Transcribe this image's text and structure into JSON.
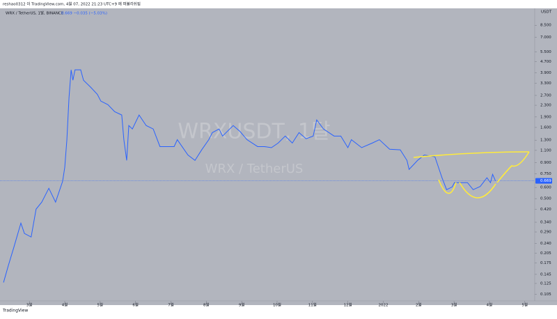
{
  "header": "reshao0312 이 TradingView.com, 4월 07, 2022 21:23 UTC+9 에 퍼블리쉬됨",
  "footer": "TradingView",
  "chart_data": {
    "type": "line",
    "legend_title": "WRX / TetherUS, 1달, BINANCE",
    "legend_quote": "0.669 −0.035 (−5.03%)",
    "watermark_symbol": "WRXUSDT, 1달",
    "watermark_name": "WRX / TetherUS",
    "y_axis_unit": "USDT",
    "log_scale": true,
    "grid": false,
    "y_axis_side": "right",
    "last_price": 0.669,
    "xlim": [
      2.17,
      17.28
    ],
    "ylim": [
      0.094,
      11.2
    ],
    "xticks": [
      {
        "value": 3,
        "label": "3월"
      },
      {
        "value": 4,
        "label": "4월"
      },
      {
        "value": 5,
        "label": "5월"
      },
      {
        "value": 6,
        "label": "6월"
      },
      {
        "value": 7,
        "label": "7월"
      },
      {
        "value": 8,
        "label": "8월"
      },
      {
        "value": 9,
        "label": "9월"
      },
      {
        "value": 10,
        "label": "10월"
      },
      {
        "value": 11,
        "label": "11월"
      },
      {
        "value": 12,
        "label": "12월"
      },
      {
        "value": 13,
        "label": "2022"
      },
      {
        "value": 14,
        "label": "2월"
      },
      {
        "value": 15,
        "label": "3월"
      },
      {
        "value": 16,
        "label": "4월"
      },
      {
        "value": 17,
        "label": "5월"
      }
    ],
    "yticks": [
      {
        "value": 0.105,
        "label": "0.105"
      },
      {
        "value": 0.125,
        "label": "0.125"
      },
      {
        "value": 0.145,
        "label": "0.145"
      },
      {
        "value": 0.175,
        "label": "0.175"
      },
      {
        "value": 0.205,
        "label": "0.205"
      },
      {
        "value": 0.24,
        "label": "0.240"
      },
      {
        "value": 0.29,
        "label": "0.290"
      },
      {
        "value": 0.34,
        "label": "0.340"
      },
      {
        "value": 0.42,
        "label": "0.420"
      },
      {
        "value": 0.5,
        "label": "0.500"
      },
      {
        "value": 0.6,
        "label": "0.600"
      },
      {
        "value": 0.75,
        "label": "0.750"
      },
      {
        "value": 0.9,
        "label": "0.900"
      },
      {
        "value": 1.1,
        "label": "1.100"
      },
      {
        "value": 1.3,
        "label": "1.300"
      },
      {
        "value": 1.6,
        "label": "1.600"
      },
      {
        "value": 1.9,
        "label": "1.900"
      },
      {
        "value": 2.3,
        "label": "2.300"
      },
      {
        "value": 2.7,
        "label": "2.700"
      },
      {
        "value": 3.3,
        "label": "3.300"
      },
      {
        "value": 3.9,
        "label": "3.900"
      },
      {
        "value": 4.7,
        "label": "4.700"
      },
      {
        "value": 5.5,
        "label": "5.500"
      },
      {
        "value": 7,
        "label": "7.000"
      },
      {
        "value": 8.5,
        "label": "8.500"
      }
    ],
    "series": [
      {
        "name": "WRX / TetherUS",
        "color": "#2962ff",
        "x": [
          2.27,
          2.41,
          2.56,
          2.76,
          2.86,
          3.05,
          3.19,
          3.35,
          3.55,
          3.74,
          3.94,
          4.0,
          4.06,
          4.12,
          4.18,
          4.23,
          4.29,
          4.45,
          4.53,
          4.73,
          4.92,
          5.02,
          5.22,
          5.41,
          5.61,
          5.67,
          5.75,
          5.81,
          5.91,
          6.1,
          6.3,
          6.5,
          6.69,
          6.89,
          7.09,
          7.18,
          7.48,
          7.68,
          7.87,
          8.07,
          8.17,
          8.36,
          8.46,
          8.76,
          8.95,
          9.15,
          9.45,
          9.64,
          9.84,
          10.03,
          10.23,
          10.43,
          10.62,
          10.82,
          11.02,
          11.12,
          11.31,
          11.61,
          11.8,
          12.0,
          12.1,
          12.39,
          12.69,
          12.89,
          13.18,
          13.48,
          13.67,
          13.73,
          13.97,
          14.16,
          14.46,
          14.66,
          14.79,
          14.95,
          15.01,
          15.19,
          15.38,
          15.54,
          15.74,
          15.93,
          16.03,
          16.09,
          16.17
        ],
        "values": [
          0.127,
          0.169,
          0.225,
          0.335,
          0.283,
          0.267,
          0.421,
          0.472,
          0.592,
          0.472,
          0.664,
          0.833,
          1.31,
          2.6,
          4.1,
          3.46,
          4.1,
          4.1,
          3.46,
          3.09,
          2.75,
          2.46,
          2.32,
          2.07,
          1.96,
          1.31,
          0.934,
          1.65,
          1.56,
          1.96,
          1.65,
          1.56,
          1.17,
          1.17,
          1.17,
          1.31,
          1.02,
          0.934,
          1.11,
          1.31,
          1.47,
          1.56,
          1.39,
          1.65,
          1.5,
          1.31,
          1.17,
          1.17,
          1.15,
          1.24,
          1.39,
          1.24,
          1.47,
          1.33,
          1.39,
          1.81,
          1.56,
          1.39,
          1.39,
          1.15,
          1.31,
          1.15,
          1.24,
          1.31,
          1.12,
          1.11,
          0.934,
          0.806,
          0.934,
          1.02,
          0.99,
          0.703,
          0.579,
          0.606,
          0.649,
          0.649,
          0.649,
          0.579,
          0.61,
          0.703,
          0.649,
          0.744,
          0.669
        ]
      }
    ]
  }
}
